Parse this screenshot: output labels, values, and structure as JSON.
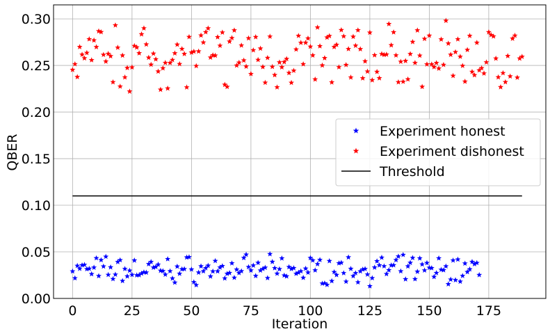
{
  "chart_data": {
    "type": "scatter",
    "title": "",
    "xlabel": "Iteration",
    "ylabel": "QBER",
    "xlim": [
      -8,
      199
    ],
    "ylim": [
      0.0,
      0.315
    ],
    "xticks": [
      0,
      25,
      50,
      75,
      100,
      125,
      150,
      175
    ],
    "yticks": [
      0.0,
      0.05,
      0.1,
      0.15,
      0.2,
      0.25,
      0.3
    ],
    "xtick_labels": [
      "0",
      "25",
      "50",
      "75",
      "100",
      "125",
      "150",
      "175"
    ],
    "ytick_labels": [
      "0.00",
      "0.05",
      "0.10",
      "0.15",
      "0.20",
      "0.25",
      "0.30"
    ],
    "grid": true,
    "legend_position": "center-right",
    "series": [
      {
        "name": "Experiment honest",
        "marker": "star",
        "color": "#0000ff",
        "n": 172,
        "y_range": [
          0.013,
          0.048
        ]
      },
      {
        "name": "Experiment dishonest",
        "marker": "star",
        "color": "#ff0000",
        "n": 190,
        "y_range": [
          0.218,
          0.301
        ]
      },
      {
        "name": "Threshold",
        "marker": "line",
        "color": "#000000",
        "x": [
          0,
          189
        ],
        "y": [
          0.11,
          0.11
        ]
      }
    ]
  }
}
